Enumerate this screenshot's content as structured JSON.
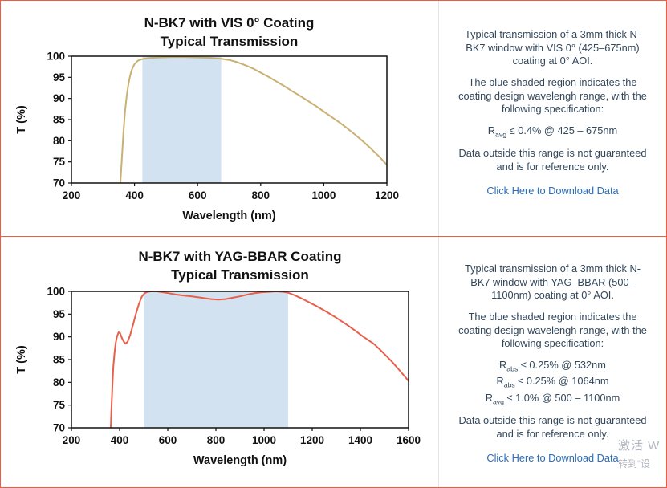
{
  "panels": [
    {
      "paragraphs": [
        "Typical transmission of a 3mm thick N-BK7 window with VIS 0° (425–675nm) coating at 0° AOI.",
        "The blue shaded region indicates the coating design wavelengh range, with the following specification:",
        "Data outside this range is not guaranteed and is for reference only."
      ],
      "specs": [
        {
          "base": "R",
          "sub": "avg",
          "rest": " ≤ 0.4% @ 425 – 675nm"
        }
      ],
      "link_label": "Click Here to Download Data"
    },
    {
      "paragraphs": [
        "Typical transmission of a 3mm thick N-BK7 window with YAG–BBAR (500–1100nm) coating at 0° AOI.",
        "The blue shaded region indicates the coating design wavelengh range, with the following specification:",
        "Data outside this range is not guaranteed and is for reference only."
      ],
      "specs": [
        {
          "base": "R",
          "sub": "abs",
          "rest": " ≤ 0.25% @ 532nm"
        },
        {
          "base": "R",
          "sub": "abs",
          "rest": " ≤ 0.25% @ 1064nm"
        },
        {
          "base": "R",
          "sub": "avg",
          "rest": " ≤ 1.0% @ 500 – 1100nm"
        }
      ],
      "link_label": "Click Here to Download Data"
    }
  ],
  "watermark": {
    "line1": "激活 W",
    "line2": "转到“设"
  },
  "chart_data": [
    {
      "type": "line",
      "title": [
        "N-BK7 with VIS 0° Coating",
        "Typical Transmission"
      ],
      "xlabel": "Wavelength (nm)",
      "ylabel": "T (%)",
      "xlim": [
        200,
        1200
      ],
      "ylim": [
        70,
        100
      ],
      "xticks": [
        200,
        400,
        600,
        800,
        1000,
        1200
      ],
      "yticks": [
        70,
        75,
        80,
        85,
        90,
        95,
        100
      ],
      "band": [
        425,
        675
      ],
      "band_color": "#d3e2f0",
      "line_color": "#c9b173",
      "grid": false,
      "legend": false,
      "series": [
        {
          "name": "Typical Transmission",
          "points": [
            [
              348,
              62
            ],
            [
              352,
              66
            ],
            [
              356,
              71
            ],
            [
              360,
              76
            ],
            [
              365,
              82
            ],
            [
              370,
              87
            ],
            [
              375,
              90.5
            ],
            [
              380,
              93
            ],
            [
              385,
              95
            ],
            [
              390,
              96.5
            ],
            [
              395,
              97.4
            ],
            [
              400,
              98.1
            ],
            [
              410,
              98.9
            ],
            [
              420,
              99.2
            ],
            [
              430,
              99.4
            ],
            [
              450,
              99.6
            ],
            [
              480,
              99.7
            ],
            [
              520,
              99.8
            ],
            [
              560,
              99.8
            ],
            [
              600,
              99.7
            ],
            [
              640,
              99.6
            ],
            [
              675,
              99.4
            ],
            [
              700,
              99.1
            ],
            [
              725,
              98.6
            ],
            [
              750,
              97.9
            ],
            [
              775,
              97.1
            ],
            [
              800,
              96.1
            ],
            [
              825,
              95.1
            ],
            [
              850,
              94.0
            ],
            [
              875,
              92.9
            ],
            [
              900,
              91.7
            ],
            [
              925,
              90.6
            ],
            [
              950,
              89.4
            ],
            [
              975,
              88.2
            ],
            [
              1000,
              86.9
            ],
            [
              1025,
              85.6
            ],
            [
              1050,
              84.3
            ],
            [
              1075,
              82.9
            ],
            [
              1100,
              81.4
            ],
            [
              1125,
              79.8
            ],
            [
              1150,
              78.1
            ],
            [
              1175,
              76.3
            ],
            [
              1200,
              74.3
            ]
          ]
        }
      ]
    },
    {
      "type": "line",
      "title": [
        "N-BK7 with YAG-BBAR Coating",
        "Typical Transmission"
      ],
      "xlabel": "Wavelength (nm)",
      "ylabel": "T (%)",
      "xlim": [
        200,
        1600
      ],
      "ylim": [
        70,
        100
      ],
      "xticks": [
        200,
        400,
        600,
        800,
        1000,
        1200,
        1400,
        1600
      ],
      "yticks": [
        70,
        75,
        80,
        85,
        90,
        95,
        100
      ],
      "band": [
        500,
        1100
      ],
      "band_color": "#d3e2f0",
      "line_color": "#e9604a",
      "grid": false,
      "legend": false,
      "series": [
        {
          "name": "Typical Transmission",
          "points": [
            [
              358,
              62
            ],
            [
              362,
              68
            ],
            [
              366,
              74
            ],
            [
              370,
              79
            ],
            [
              374,
              83.5
            ],
            [
              379,
              86.5
            ],
            [
              384,
              88.7
            ],
            [
              390,
              90.2
            ],
            [
              396,
              91.0
            ],
            [
              402,
              90.8
            ],
            [
              410,
              89.7
            ],
            [
              418,
              88.9
            ],
            [
              426,
              88.5
            ],
            [
              434,
              89.0
            ],
            [
              444,
              90.4
            ],
            [
              456,
              92.7
            ],
            [
              468,
              95.1
            ],
            [
              480,
              97.2
            ],
            [
              492,
              98.8
            ],
            [
              504,
              99.6
            ],
            [
              516,
              99.9
            ],
            [
              530,
              100
            ],
            [
              555,
              100
            ],
            [
              580,
              99.8
            ],
            [
              605,
              99.6
            ],
            [
              635,
              99.3
            ],
            [
              665,
              99.1
            ],
            [
              700,
              98.9
            ],
            [
              740,
              98.6
            ],
            [
              780,
              98.3
            ],
            [
              810,
              98.2
            ],
            [
              840,
              98.3
            ],
            [
              870,
              98.6
            ],
            [
              900,
              98.9
            ],
            [
              930,
              99.3
            ],
            [
              960,
              99.6
            ],
            [
              990,
              99.8
            ],
            [
              1020,
              99.9
            ],
            [
              1050,
              100
            ],
            [
              1080,
              99.9
            ],
            [
              1100,
              99.7
            ],
            [
              1120,
              99.3
            ],
            [
              1150,
              98.6
            ],
            [
              1180,
              97.8
            ],
            [
              1220,
              96.7
            ],
            [
              1260,
              95.5
            ],
            [
              1300,
              94.2
            ],
            [
              1340,
              92.8
            ],
            [
              1380,
              91.3
            ],
            [
              1410,
              90.1
            ],
            [
              1435,
              89.2
            ],
            [
              1455,
              88.5
            ],
            [
              1475,
              87.5
            ],
            [
              1500,
              86.2
            ],
            [
              1530,
              84.6
            ],
            [
              1560,
              82.8
            ],
            [
              1600,
              80.3
            ]
          ]
        }
      ]
    }
  ]
}
